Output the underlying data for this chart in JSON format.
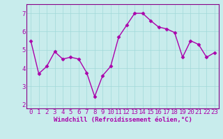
{
  "x": [
    0,
    1,
    2,
    3,
    4,
    5,
    6,
    7,
    8,
    9,
    10,
    11,
    12,
    13,
    14,
    15,
    16,
    17,
    18,
    19,
    20,
    21,
    22,
    23
  ],
  "y": [
    5.5,
    3.7,
    4.1,
    4.9,
    4.5,
    4.6,
    4.5,
    3.75,
    2.45,
    3.6,
    4.1,
    5.7,
    6.35,
    7.0,
    7.0,
    6.6,
    6.25,
    6.15,
    5.95,
    4.6,
    5.5,
    5.3,
    4.6,
    4.85
  ],
  "line_color": "#aa00aa",
  "marker": "D",
  "marker_size": 2.5,
  "bg_color": "#c8ecec",
  "xlabel": "Windchill (Refroidissement éolien,°C)",
  "xlabel_fontsize": 6.5,
  "ylabel_ticks": [
    2,
    3,
    4,
    5,
    6,
    7
  ],
  "xtick_labels": [
    "0",
    "1",
    "2",
    "3",
    "4",
    "5",
    "6",
    "7",
    "8",
    "9",
    "10",
    "11",
    "12",
    "13",
    "14",
    "15",
    "16",
    "17",
    "18",
    "19",
    "20",
    "21",
    "22",
    "23"
  ],
  "ylim": [
    1.8,
    7.5
  ],
  "xlim": [
    -0.5,
    23.5
  ],
  "grid_color": "#a0d8d8",
  "tick_fontsize": 6.5,
  "line_width": 1.0,
  "spine_color": "#880088"
}
